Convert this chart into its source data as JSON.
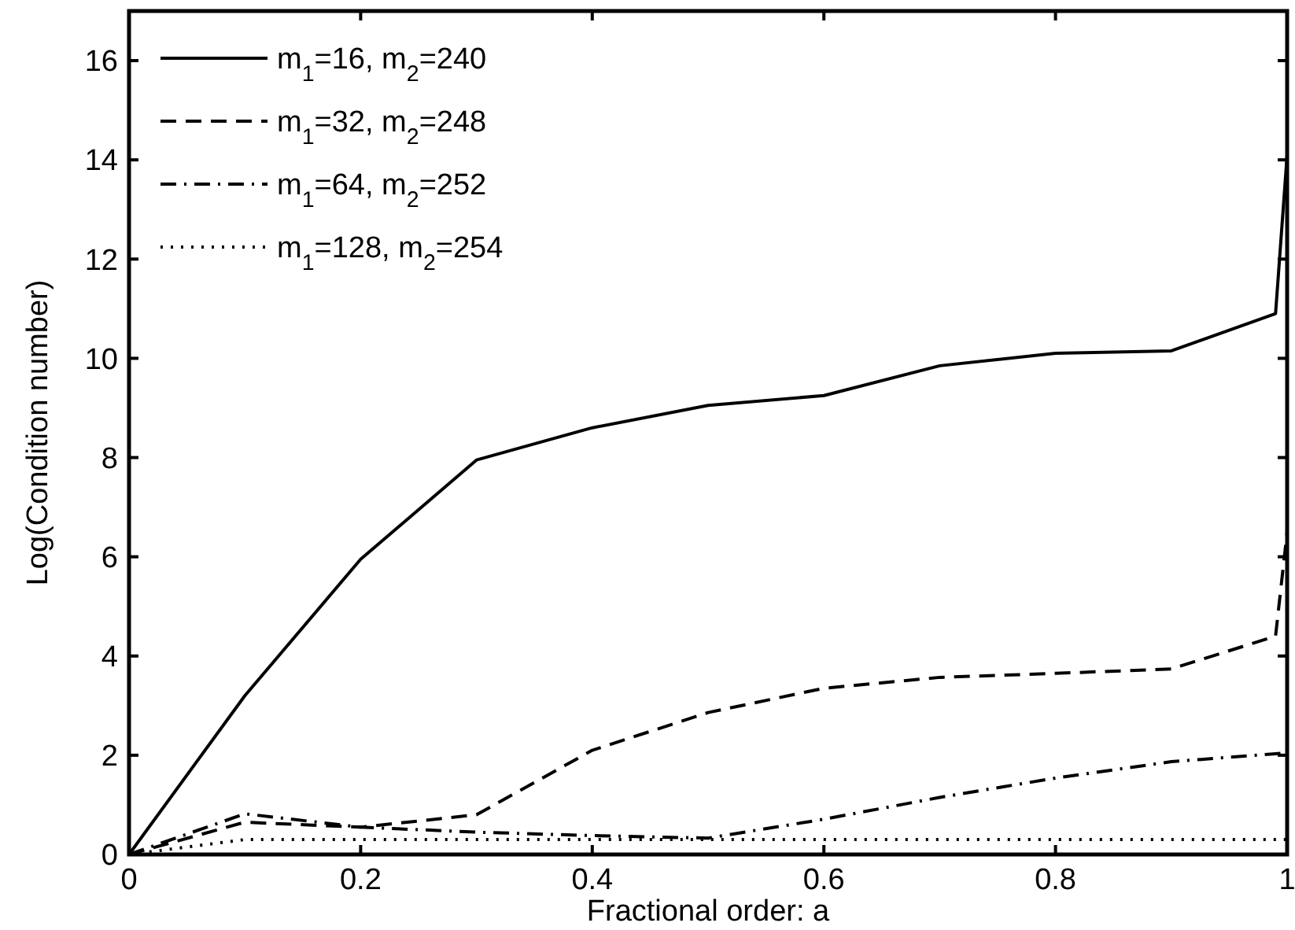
{
  "chart_data": {
    "type": "line",
    "xlabel": "Fractional order: a",
    "ylabel": "Log(Condition number)",
    "x": [
      0,
      0.1,
      0.2,
      0.3,
      0.4,
      0.5,
      0.6,
      0.7,
      0.8,
      0.9,
      0.99,
      1
    ],
    "series": [
      {
        "name": "m$_{1}$=16, m$_{2}$=240",
        "color": "#000000",
        "line_style": "solid",
        "values": [
          0,
          3.2,
          5.95,
          7.95,
          8.6,
          9.05,
          9.25,
          9.85,
          10.1,
          10.15,
          10.9,
          14.1
        ]
      },
      {
        "name": "m$_{1}$=32, m$_{2}$=248",
        "color": "#000000",
        "line_style": "dashed",
        "values": [
          0,
          0.65,
          0.55,
          0.8,
          2.1,
          2.86,
          3.35,
          3.57,
          3.65,
          3.74,
          4.4,
          6.5
        ]
      },
      {
        "name": "m$_{1}$=64, m$_{2}$=252",
        "color": "#000000",
        "line_style": "dashdot",
        "values": [
          0,
          0.82,
          0.55,
          0.45,
          0.38,
          0.33,
          0.71,
          1.15,
          1.54,
          1.87,
          2.03,
          2.05
        ]
      },
      {
        "name": "m$_{1}$=128, m$_{2}$=254",
        "color": "#000000",
        "line_style": "dotted",
        "values": [
          0,
          0.3,
          0.3,
          0.3,
          0.3,
          0.3,
          0.3,
          0.3,
          0.3,
          0.3,
          0.3,
          0.3
        ]
      }
    ],
    "xlim": [
      0,
      1
    ],
    "xticks": [
      0,
      0.2,
      0.4,
      0.6,
      0.8,
      1
    ],
    "ylim": [
      0,
      17
    ],
    "yticks": [
      0,
      2,
      4,
      6,
      8,
      10,
      12,
      14,
      16
    ],
    "grid": false,
    "legend": "top left"
  }
}
